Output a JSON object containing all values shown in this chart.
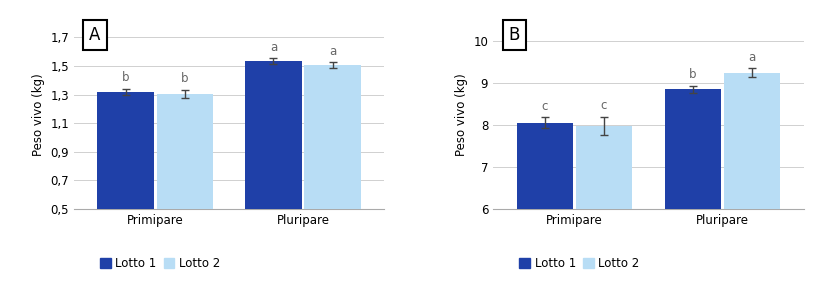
{
  "chart_A": {
    "label": "A",
    "categories": [
      "Primipare",
      "Pluripare"
    ],
    "lotto1_values": [
      1.32,
      1.535
    ],
    "lotto2_values": [
      1.305,
      1.508
    ],
    "lotto1_errors": [
      0.022,
      0.018
    ],
    "lotto2_errors": [
      0.03,
      0.02
    ],
    "sig_labels_lotto1": [
      "b",
      "a"
    ],
    "sig_labels_lotto2": [
      "b",
      "a"
    ],
    "ylabel": "Peso vivo (kg)",
    "ylim": [
      0.5,
      1.82
    ],
    "yticks": [
      0.5,
      0.7,
      0.9,
      1.1,
      1.3,
      1.5,
      1.7
    ],
    "ytick_labels": [
      "0,5",
      "0,7",
      "0,9",
      "1,1",
      "1,3",
      "1,5",
      "1,7"
    ]
  },
  "chart_B": {
    "label": "B",
    "categories": [
      "Primipare",
      "Pluripare"
    ],
    "lotto1_values": [
      8.05,
      8.85
    ],
    "lotto2_values": [
      7.98,
      9.25
    ],
    "lotto1_errors": [
      0.13,
      0.09
    ],
    "lotto2_errors": [
      0.22,
      0.11
    ],
    "sig_labels_lotto1": [
      "c",
      "b"
    ],
    "sig_labels_lotto2": [
      "c",
      "a"
    ],
    "ylabel": "Peso vivo (kg)",
    "ylim": [
      6,
      10.5
    ],
    "yticks": [
      6,
      7,
      8,
      9,
      10
    ],
    "ytick_labels": [
      "6",
      "7",
      "8",
      "9",
      "10"
    ]
  },
  "color_lotto1": "#1f40a8",
  "color_lotto2": "#b8ddf5",
  "legend_labels": [
    "Lotto 1",
    "Lotto 2"
  ],
  "bar_width": 0.38,
  "background_color": "#ffffff",
  "grid_color": "#d0d0d0",
  "sig_fontsize": 8.5,
  "axis_label_fontsize": 8.5,
  "tick_fontsize": 8.5,
  "legend_fontsize": 8.5,
  "panel_label_fontsize": 12
}
